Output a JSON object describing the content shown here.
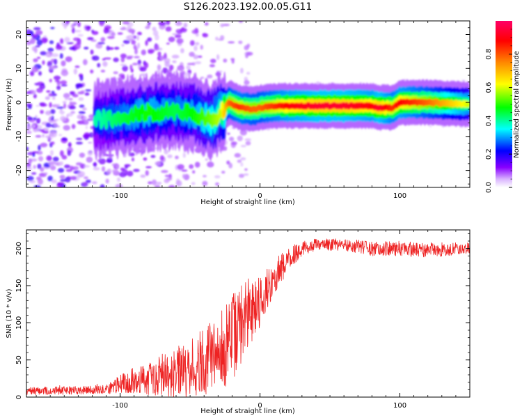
{
  "figure": {
    "title": "S126.2023.192.00.05.G11"
  },
  "chart_data": [
    {
      "type": "heatmap",
      "xlabel": "Height of straight line (km)",
      "ylabel": "Frequency (Hz)",
      "xlim": [
        -167,
        150
      ],
      "ylim": [
        -25,
        24
      ],
      "xticks": [
        -100,
        0,
        100
      ],
      "yticks": [
        -20,
        -10,
        0,
        10,
        20
      ],
      "colorbar": {
        "label": "Normalized spectral amplitude",
        "range": [
          0,
          1
        ],
        "ticks": [
          0.0,
          0.2,
          0.4,
          0.6,
          0.8
        ],
        "colormap": [
          "#ffffff",
          "#d9b3ff",
          "#8800ff",
          "#0000ff",
          "#00ffff",
          "#00ff00",
          "#ffff00",
          "#ff8800",
          "#ff0000",
          "#ff0066"
        ]
      },
      "ridge": {
        "x": [
          -115,
          -100,
          -80,
          -60,
          -45,
          -35,
          -28,
          -22,
          -15,
          -5,
          0,
          10,
          20,
          40,
          60,
          80,
          85,
          95,
          100,
          120,
          150
        ],
        "freq": [
          -5,
          -4.5,
          -3,
          -2.5,
          -3.5,
          -5.5,
          -3,
          0,
          -1.5,
          -2,
          -1.5,
          -1,
          -1,
          -1,
          -1,
          -1,
          -1.5,
          -1.5,
          0,
          0,
          -0.5
        ],
        "amplitude": [
          0.3,
          0.35,
          0.4,
          0.35,
          0.4,
          0.45,
          0.5,
          0.7,
          0.75,
          0.7,
          0.7,
          0.75,
          0.8,
          0.85,
          0.85,
          0.8,
          0.85,
          0.75,
          0.8,
          0.7,
          0.5
        ]
      }
    },
    {
      "type": "line",
      "xlabel": "Height of straight line (km)",
      "ylabel": "SNR (10 * v/v)",
      "xlim": [
        -167,
        150
      ],
      "ylim": [
        0,
        225
      ],
      "xticks": [
        -100,
        0,
        100
      ],
      "yticks": [
        0,
        50,
        100,
        150,
        200
      ],
      "series": [
        {
          "color": "#ee2222",
          "envelope": {
            "x": [
              -167,
              -110,
              -100,
              -90,
              -80,
              -70,
              -60,
              -50,
              -40,
              -30,
              -20,
              -10,
              0,
              10,
              20,
              30,
              40,
              60,
              80,
              100,
              120,
              150
            ],
            "mean": [
              8,
              10,
              18,
              22,
              25,
              30,
              35,
              40,
              48,
              55,
              80,
              110,
              130,
              160,
              185,
              200,
              205,
              205,
              200,
              200,
              198,
              200
            ],
            "spread": [
              5,
              6,
              12,
              18,
              22,
              28,
              35,
              40,
              45,
              55,
              60,
              50,
              35,
              25,
              15,
              10,
              8,
              8,
              10,
              10,
              10,
              8
            ]
          }
        }
      ]
    }
  ]
}
